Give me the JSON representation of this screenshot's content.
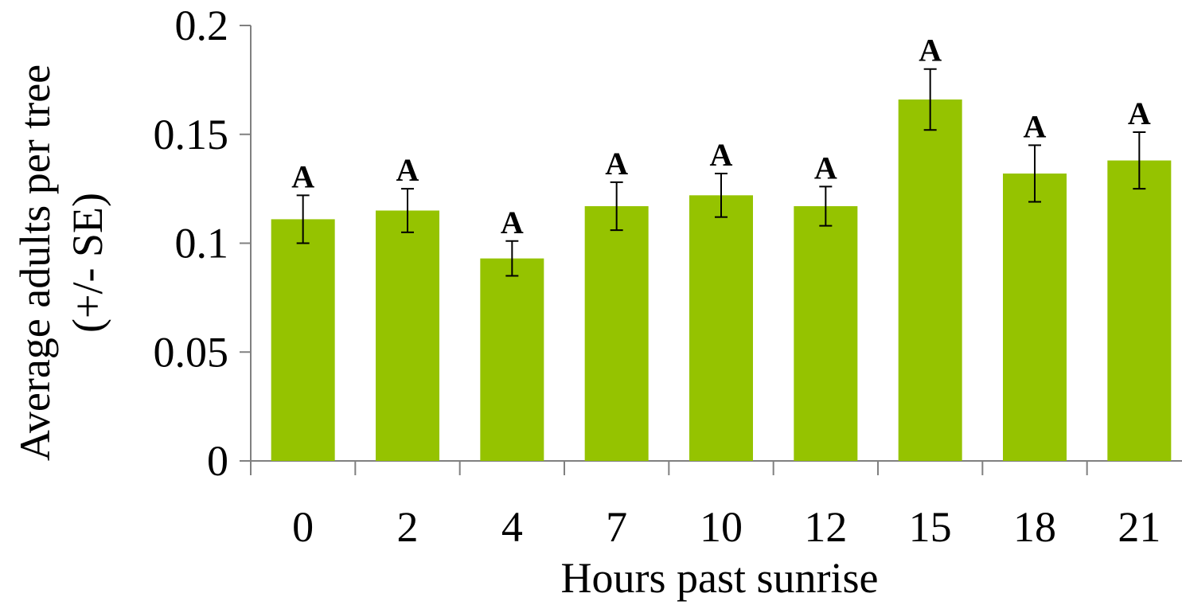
{
  "chart_data": {
    "type": "bar",
    "categories": [
      "0",
      "2",
      "4",
      "7",
      "10",
      "12",
      "15",
      "18",
      "21"
    ],
    "series": [
      {
        "values": [
          0.111,
          0.115,
          0.093,
          0.117,
          0.122,
          0.117,
          0.166,
          0.132,
          0.138
        ],
        "error": [
          0.011,
          0.01,
          0.008,
          0.011,
          0.01,
          0.009,
          0.014,
          0.013,
          0.013
        ],
        "labels": [
          "A",
          "A",
          "A",
          "A",
          "A",
          "A",
          "A",
          "A",
          "A"
        ],
        "color": "#95c300"
      }
    ],
    "xlabel": "Hours past sunrise",
    "ylabel_lines": [
      "Average adults per tree",
      "(+/- SE)"
    ],
    "ylim": [
      0,
      0.2
    ],
    "yticks": [
      "0",
      "0.05",
      "0.1",
      "0.15",
      "0.2"
    ],
    "grid": false,
    "legend": "none"
  }
}
